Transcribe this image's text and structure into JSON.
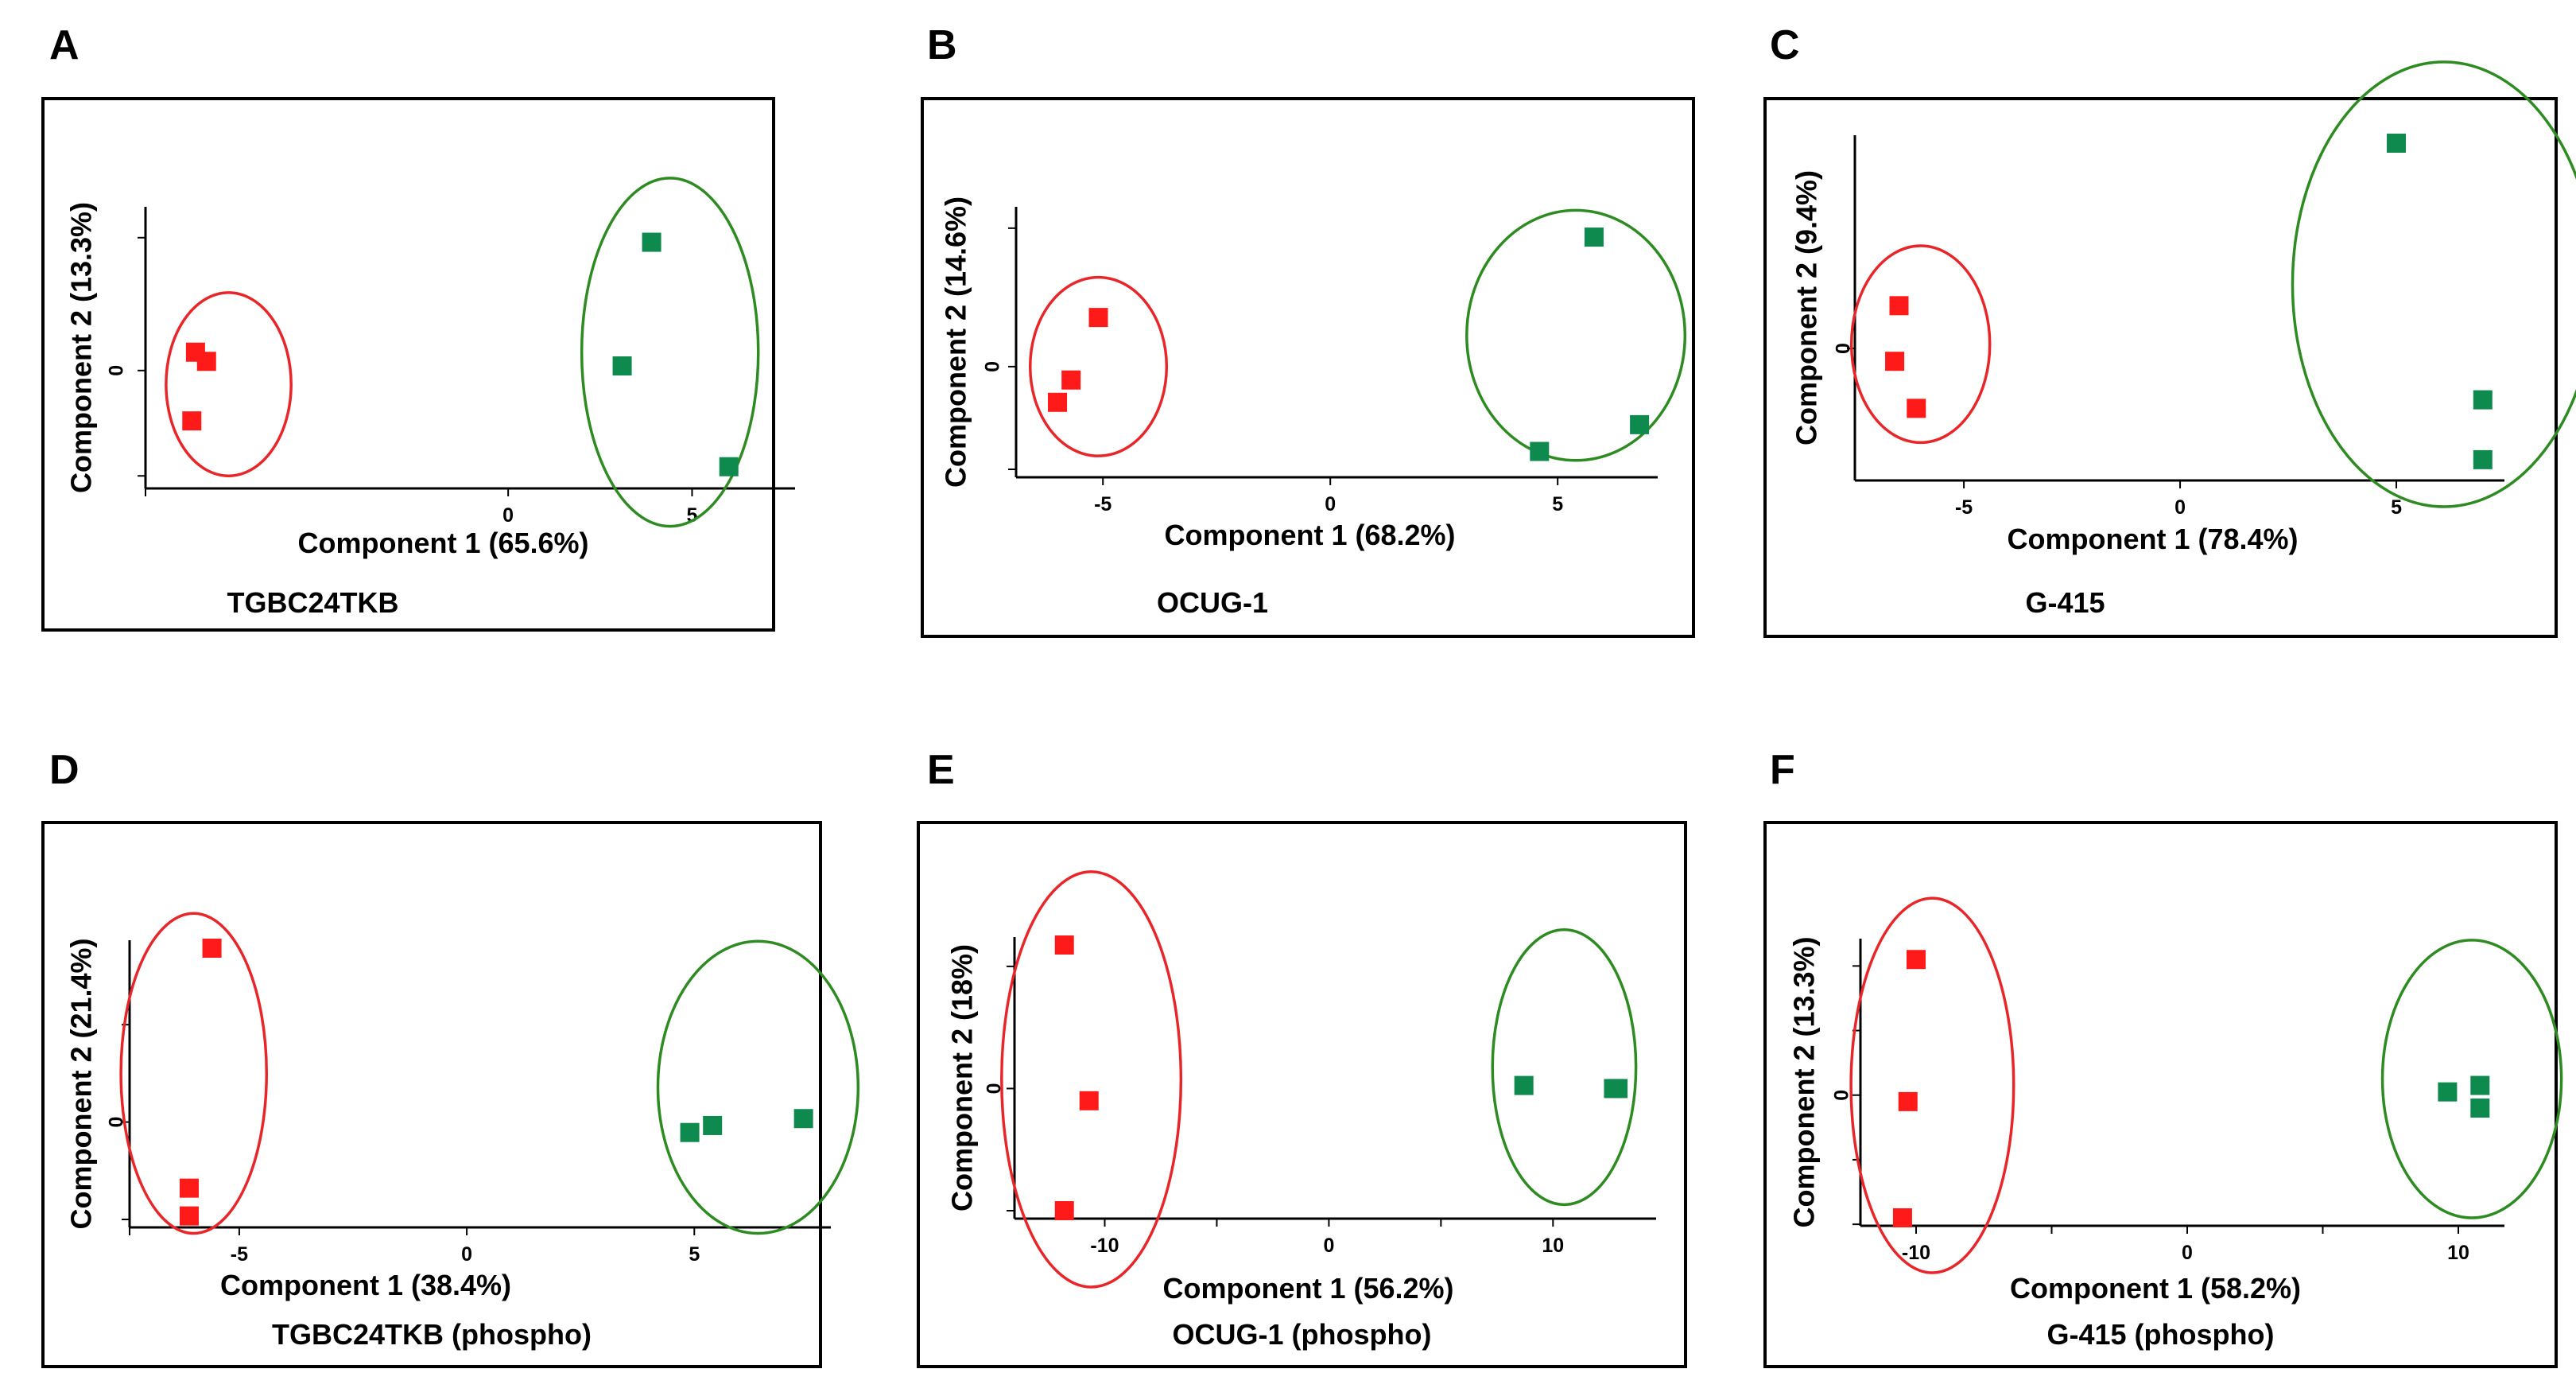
{
  "figure": {
    "description_panels": [
      "A",
      "B",
      "C",
      "D",
      "E",
      "F"
    ]
  },
  "colors": {
    "group1": "#ff1a1a",
    "group2": "#0e8a4e",
    "ellipse1": "#e8262a",
    "ellipse2": "#2e8b22",
    "axis": "#000000",
    "frame": "#000000"
  },
  "chart_data": [
    {
      "type": "scatter",
      "panel": "A",
      "cell_line": "TGBC24TKB",
      "xlabel": "Component 1 (65.6%)",
      "ylabel": "Component 2 (13.3%)",
      "xlim": [
        -9.6,
        7.8
      ],
      "ylim": [
        -2.4,
        3.4
      ],
      "x_ticks": [
        -10,
        0,
        5
      ],
      "x_tick_labels": [
        "",
        "0",
        "5"
      ],
      "y_ticks": [
        -2.3,
        0,
        2.9
      ],
      "y_tick_labels": [
        "",
        "0",
        ""
      ],
      "series": [
        {
          "name": "group1",
          "points": [
            [
              -8.5,
              0.4
            ],
            [
              -8.2,
              0.2
            ],
            [
              -8.6,
              -1.1
            ]
          ]
        },
        {
          "name": "group2",
          "points": [
            [
              3.1,
              0.1
            ],
            [
              3.9,
              2.8
            ],
            [
              6.0,
              -2.1
            ]
          ]
        }
      ],
      "ellipses": [
        {
          "group": "group1",
          "cx": -7.6,
          "cy": -0.3,
          "rx": 1.7,
          "ry": 2.0
        },
        {
          "group": "group2",
          "cx": 4.4,
          "cy": 0.4,
          "rx": 2.4,
          "ry": 3.8
        }
      ]
    },
    {
      "type": "scatter",
      "panel": "B",
      "cell_line": "OCUG-1",
      "xlabel": "Component 1 (68.2%)",
      "ylabel": "Component 2 (14.6%)",
      "xlim": [
        -6.7,
        7.2
      ],
      "ylim": [
        -2.3,
        3.4
      ],
      "x_ticks": [
        -5,
        0,
        5
      ],
      "x_tick_labels": [
        "-5",
        "0",
        "5"
      ],
      "y_ticks": [
        -2.3,
        0,
        3.1
      ],
      "y_tick_labels": [
        "",
        "0",
        ""
      ],
      "series": [
        {
          "name": "group1",
          "points": [
            [
              -6.0,
              -0.8
            ],
            [
              -5.7,
              -0.3
            ],
            [
              -5.1,
              1.1
            ]
          ]
        },
        {
          "name": "group2",
          "points": [
            [
              4.6,
              -1.9
            ],
            [
              5.8,
              2.9
            ],
            [
              6.8,
              -1.3
            ]
          ]
        }
      ],
      "ellipses": [
        {
          "group": "group1",
          "cx": -5.1,
          "cy": 0.0,
          "rx": 1.5,
          "ry": 2.0
        },
        {
          "group": "group2",
          "cx": 5.4,
          "cy": 0.7,
          "rx": 2.4,
          "ry": 2.8
        }
      ]
    },
    {
      "type": "scatter",
      "panel": "C",
      "cell_line": "G-415",
      "xlabel": "Component 1 (78.4%)",
      "ylabel": "Component 2 (9.4%)",
      "xlim": [
        -7.3,
        7.5
      ],
      "ylim": [
        -2.9,
        4.8
      ],
      "x_ticks": [
        -5,
        0,
        5
      ],
      "x_tick_labels": [
        "-5",
        "0",
        "5"
      ],
      "y_ticks": [
        0
      ],
      "y_tick_labels": [
        "0"
      ],
      "series": [
        {
          "name": "group1",
          "points": [
            [
              -6.5,
              1.0
            ],
            [
              -6.6,
              -0.3
            ],
            [
              -6.1,
              -1.4
            ]
          ]
        },
        {
          "name": "group2",
          "points": [
            [
              5.0,
              4.8
            ],
            [
              7.0,
              -1.2
            ],
            [
              7.0,
              -2.6
            ]
          ]
        }
      ],
      "ellipses": [
        {
          "group": "group1",
          "cx": -6.0,
          "cy": 0.1,
          "rx": 1.6,
          "ry": 2.3
        },
        {
          "group": "group2",
          "cx": 6.1,
          "cy": 1.5,
          "rx": 3.5,
          "ry": 5.2
        }
      ]
    },
    {
      "type": "scatter",
      "panel": "D",
      "cell_line": "TGBC24TKB (phospho)",
      "xlabel": "Component 1 (38.4%)",
      "ylabel": "Component 2 (21.4%)",
      "xlim": [
        -7.2,
        8.0
      ],
      "ylim": [
        -2.8,
        5.0
      ],
      "x_ticks": [
        -10,
        -5,
        0,
        5
      ],
      "x_tick_labels": [
        "",
        "-5",
        "0",
        "5"
      ],
      "y_ticks": [
        -2.8,
        0,
        2.8
      ],
      "y_tick_labels": [
        "",
        "0",
        ""
      ],
      "series": [
        {
          "name": "group1",
          "points": [
            [
              -5.6,
              5.0
            ],
            [
              -6.1,
              -1.9
            ],
            [
              -6.1,
              -2.7
            ]
          ]
        },
        {
          "name": "group2",
          "points": [
            [
              4.9,
              -0.3
            ],
            [
              5.4,
              -0.1
            ],
            [
              7.4,
              0.1
            ]
          ]
        }
      ],
      "ellipses": [
        {
          "group": "group1",
          "cx": -6.0,
          "cy": 1.4,
          "rx": 1.6,
          "ry": 4.6
        },
        {
          "group": "group2",
          "cx": 6.4,
          "cy": 1.0,
          "rx": 2.2,
          "ry": 4.2
        }
      ]
    },
    {
      "type": "scatter",
      "panel": "E",
      "cell_line": "OCUG-1 (phospho)",
      "xlabel": "Component 1 (56.2%)",
      "ylabel": "Component 2 (18%)",
      "xlim": [
        -13.6,
        14.6
      ],
      "ylim": [
        -4.0,
        4.7
      ],
      "x_ticks": [
        -10,
        -5,
        0,
        5,
        10
      ],
      "x_tick_labels": [
        "-10",
        "",
        "0",
        "",
        "10"
      ],
      "y_ticks": [
        -4,
        0,
        4
      ],
      "y_tick_labels": [
        "",
        "0",
        ""
      ],
      "series": [
        {
          "name": "group1",
          "points": [
            [
              -11.8,
              4.7
            ],
            [
              -10.7,
              -0.4
            ],
            [
              -11.8,
              -4.0
            ]
          ]
        },
        {
          "name": "group2",
          "points": [
            [
              8.7,
              0.1
            ],
            [
              12.7,
              0.0
            ],
            [
              12.9,
              0.0
            ]
          ]
        }
      ],
      "ellipses": [
        {
          "group": "group1",
          "cx": -10.6,
          "cy": 0.3,
          "rx": 4.0,
          "ry": 6.8
        },
        {
          "group": "group2",
          "cx": 10.5,
          "cy": 0.7,
          "rx": 3.2,
          "ry": 4.5
        }
      ]
    },
    {
      "type": "scatter",
      "panel": "F",
      "cell_line": "G-415 (phospho)",
      "xlabel": "Component 1 (58.2%)",
      "ylabel": "Component 2 (13.3%)",
      "xlim": [
        -11.7,
        11.7
      ],
      "ylim": [
        -3.8,
        4.6
      ],
      "x_ticks": [
        -10,
        -5,
        0,
        5,
        10
      ],
      "x_tick_labels": [
        "-10",
        "",
        "0",
        "",
        "10"
      ],
      "y_ticks": [
        -4,
        -2,
        0,
        2,
        4
      ],
      "y_tick_labels": [
        "",
        "",
        "0",
        "",
        ""
      ],
      "series": [
        {
          "name": "group1",
          "points": [
            [
              -10.0,
              4.2
            ],
            [
              -10.3,
              -0.2
            ],
            [
              -10.5,
              -3.8
            ]
          ]
        },
        {
          "name": "group2",
          "points": [
            [
              9.6,
              0.1
            ],
            [
              10.8,
              0.3
            ],
            [
              10.8,
              -0.4
            ]
          ]
        }
      ],
      "ellipses": [
        {
          "group": "group1",
          "cx": -9.4,
          "cy": 0.3,
          "rx": 3.0,
          "ry": 5.8
        },
        {
          "group": "group2",
          "cx": 10.5,
          "cy": 0.5,
          "rx": 3.3,
          "ry": 4.3
        }
      ]
    }
  ]
}
